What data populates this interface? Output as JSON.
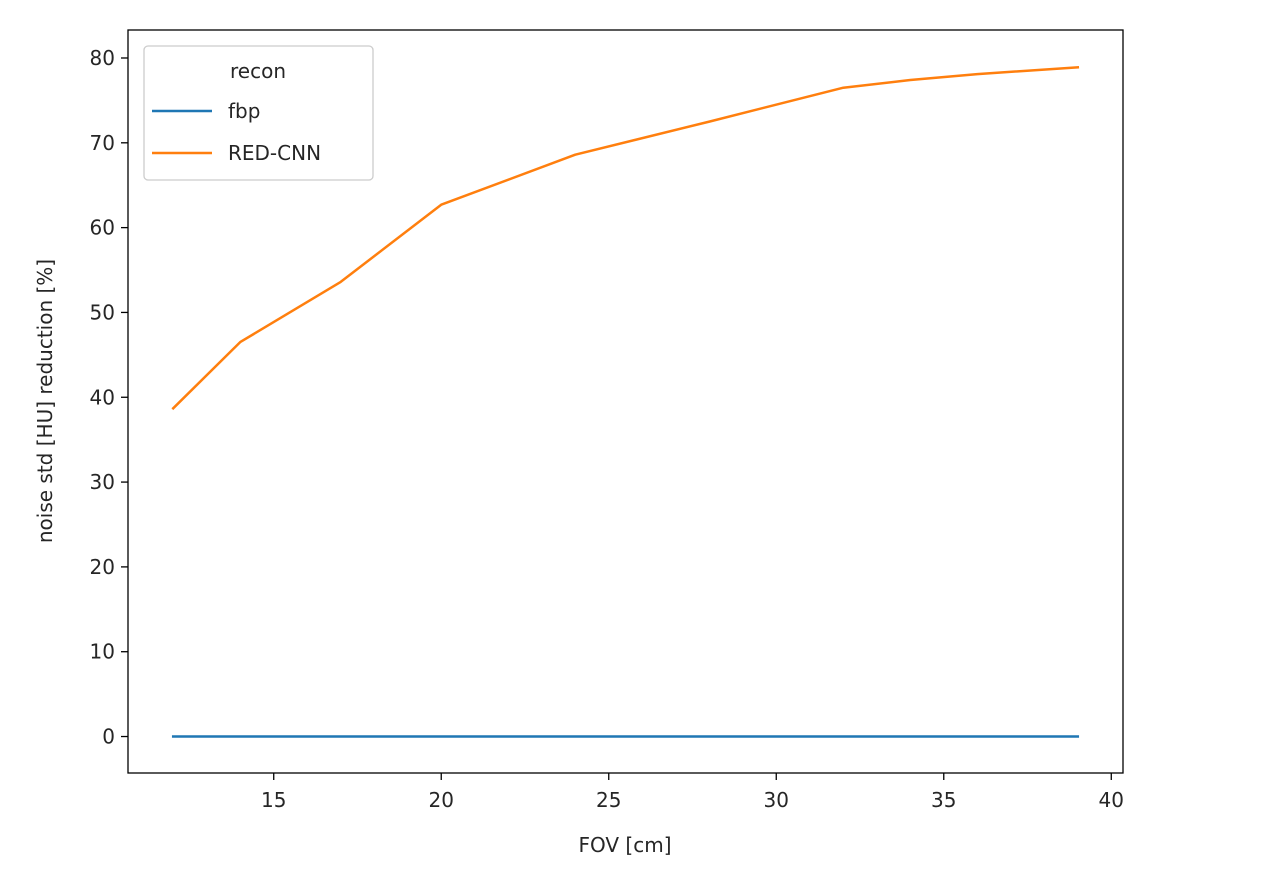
{
  "chart_data": {
    "type": "line",
    "title": "",
    "xlabel": "FOV [cm]",
    "ylabel": "noise std [HU] reduction [%]",
    "xlim": [
      10.65,
      40.35
    ],
    "ylim": [
      -4.3,
      83.3
    ],
    "xticks": [
      15,
      20,
      25,
      30,
      35,
      40
    ],
    "yticks": [
      0,
      10,
      20,
      30,
      40,
      50,
      60,
      70,
      80
    ],
    "grid": false,
    "legend": {
      "title": "recon",
      "placement": "upper-left"
    },
    "series": [
      {
        "name": "fbp",
        "color": "#1f77b4",
        "x": [
          12,
          14,
          17,
          20,
          24,
          28,
          32,
          34,
          36,
          39
        ],
        "y": [
          0,
          0,
          0,
          0,
          0,
          0,
          0,
          0,
          0,
          0
        ]
      },
      {
        "name": "RED-CNN",
        "color": "#ff7f0e",
        "x": [
          12,
          14,
          17,
          20,
          24,
          28,
          32,
          34,
          36,
          39
        ],
        "y": [
          38.7,
          46.5,
          53.6,
          62.7,
          68.6,
          72.5,
          76.5,
          77.4,
          78.1,
          78.9
        ]
      }
    ]
  }
}
